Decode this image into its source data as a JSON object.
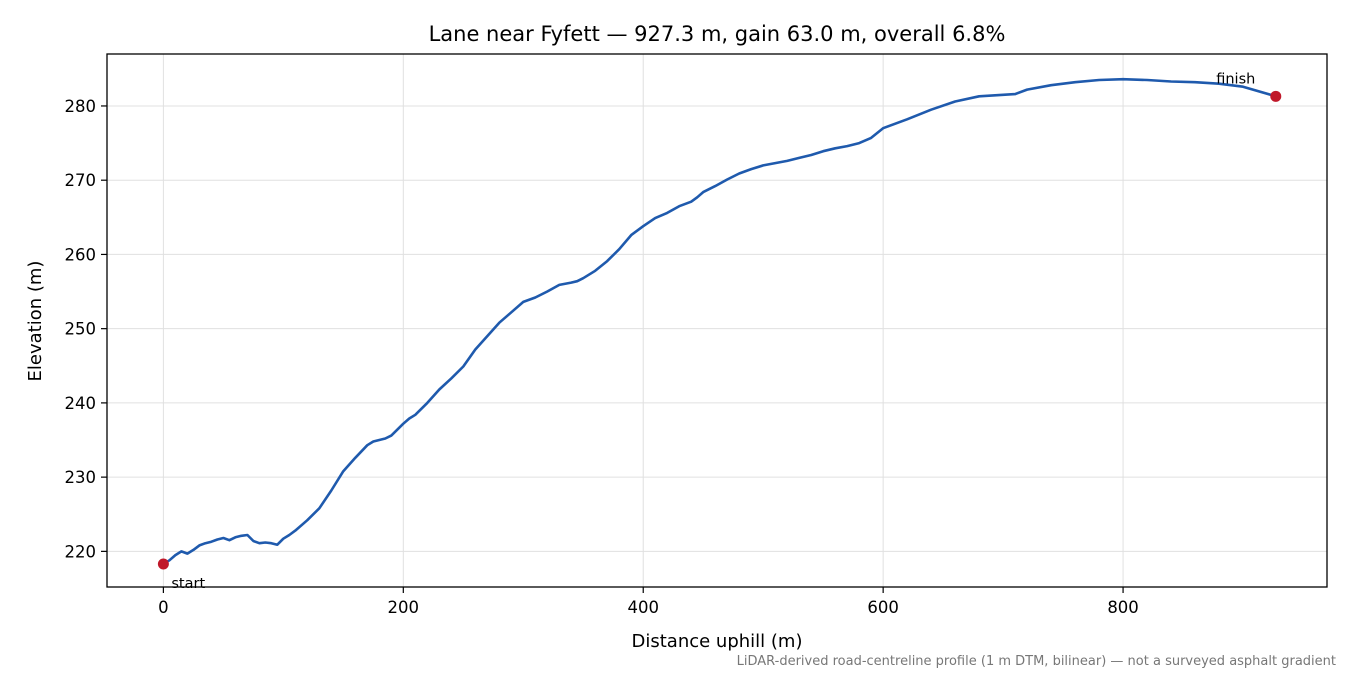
{
  "chart_data": {
    "type": "line",
    "title": "Lane near Fyfett — 927.3 m, gain 63.0 m, overall 6.8%",
    "xlabel": "Distance uphill (m)",
    "ylabel": "Elevation (m)",
    "xlim": [
      -47,
      970
    ],
    "ylim": [
      215.2,
      287.0
    ],
    "xticks": [
      0,
      200,
      400,
      600,
      800
    ],
    "yticks": [
      220,
      230,
      240,
      250,
      260,
      270,
      280
    ],
    "grid": true,
    "line_color": "#1f5aad",
    "marker_color": "#c0182a",
    "series": [
      {
        "x": [
          0,
          5,
          10,
          15,
          20,
          25,
          30,
          35,
          40,
          45,
          50,
          55,
          60,
          65,
          70,
          75,
          80,
          85,
          90,
          95,
          100,
          105,
          110,
          120,
          130,
          140,
          150,
          160,
          170,
          175,
          180,
          185,
          190,
          200,
          205,
          210,
          220,
          230,
          240,
          250,
          260,
          270,
          280,
          290,
          300,
          310,
          320,
          330,
          340,
          345,
          350,
          360,
          370,
          380,
          390,
          400,
          410,
          420,
          430,
          440,
          445,
          450,
          460,
          470,
          480,
          490,
          500,
          510,
          520,
          530,
          540,
          550,
          560,
          570,
          580,
          590,
          600,
          620,
          640,
          660,
          680,
          700,
          710,
          720,
          740,
          760,
          780,
          800,
          820,
          840,
          860,
          880,
          900,
          927.3
        ],
        "y": [
          218.3,
          218.8,
          219.5,
          220.0,
          219.7,
          220.2,
          220.8,
          221.1,
          221.3,
          221.6,
          221.8,
          221.5,
          221.9,
          222.1,
          222.2,
          221.4,
          221.1,
          221.2,
          221.1,
          220.9,
          221.7,
          222.2,
          222.8,
          224.2,
          225.8,
          228.2,
          230.8,
          232.6,
          234.3,
          234.8,
          235.0,
          235.2,
          235.6,
          237.2,
          237.9,
          238.4,
          240.0,
          241.8,
          243.3,
          244.9,
          247.2,
          249.0,
          250.8,
          252.2,
          253.6,
          254.2,
          255.0,
          255.9,
          256.2,
          256.4,
          256.8,
          257.8,
          259.1,
          260.7,
          262.6,
          263.8,
          264.9,
          265.6,
          266.5,
          267.1,
          267.7,
          268.4,
          269.2,
          270.1,
          270.9,
          271.5,
          272.0,
          272.3,
          272.6,
          273.0,
          273.4,
          273.9,
          274.3,
          274.6,
          275.0,
          275.7,
          277.0,
          278.2,
          279.5,
          280.6,
          281.3,
          281.5,
          281.6,
          282.2,
          282.8,
          283.2,
          283.5,
          283.6,
          283.5,
          283.3,
          283.2,
          283.0,
          282.6,
          281.3
        ]
      }
    ],
    "annotations": {
      "start": "start",
      "finish": "finish"
    },
    "footnote": "LiDAR-derived road-centreline profile (1 m DTM, bilinear) — not a surveyed asphalt gradient"
  }
}
